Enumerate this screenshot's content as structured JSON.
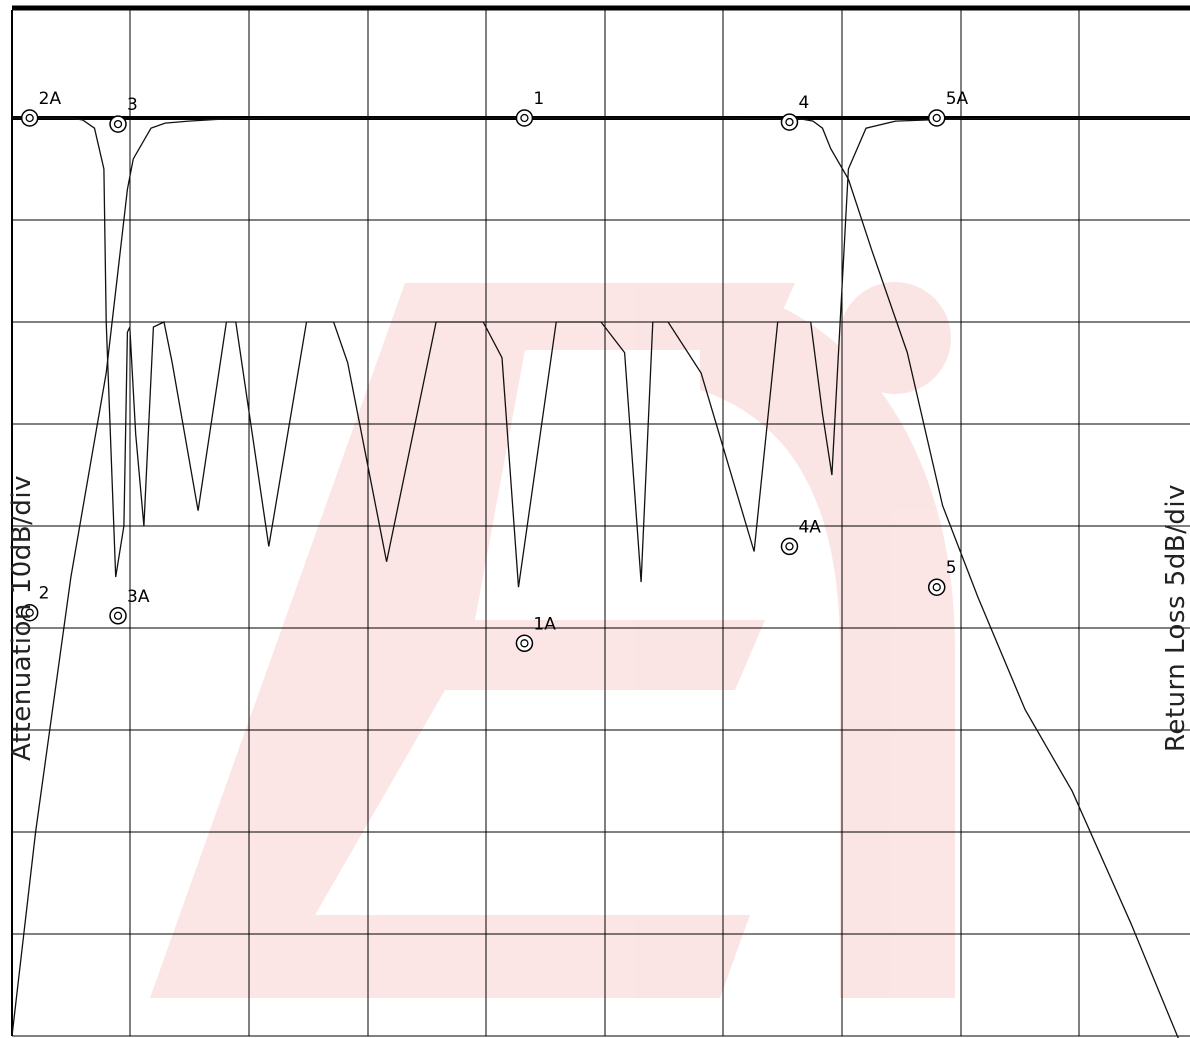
{
  "chart_data": {
    "type": "line",
    "xlabel": "",
    "ylabel": "Attenuation 10dB/div",
    "ylabel_right": "Return Loss 5dB/div",
    "grid": true,
    "watermark": "red logo",
    "grid_divisions": {
      "x": 10,
      "y": 9
    },
    "x": [
      0.0,
      0.2,
      0.5,
      0.8,
      0.9,
      0.98,
      1.03,
      1.18,
      1.3,
      1.5,
      1.8,
      2.2,
      3.0,
      4.0,
      5.0,
      6.0,
      6.7,
      6.8,
      6.88,
      6.95,
      7.1,
      7.3,
      7.6,
      7.9,
      8.2,
      8.6,
      9.0,
      9.5,
      10.0
    ],
    "series": [
      {
        "name": "Attenuation",
        "values": [
          -90.0,
          -70.0,
          -45.0,
          -25.0,
          -15.0,
          -7.0,
          -4.0,
          -1.0,
          -0.5,
          -0.3,
          -0.1,
          0.0,
          0.0,
          0.0,
          0.0,
          0.0,
          -0.1,
          -0.3,
          -1.0,
          -3.0,
          -6.0,
          -13.0,
          -23.0,
          -38.0,
          -47.0,
          -58.0,
          -66.0,
          -79.0,
          -93.0
        ]
      },
      {
        "name": "Return Loss",
        "x": [
          0.0,
          0.5,
          0.6,
          0.7,
          0.78,
          0.8,
          0.88,
          0.95,
          0.98,
          1.0,
          1.05,
          1.12,
          1.2,
          1.29,
          1.36,
          1.58,
          1.82,
          1.9,
          2.18,
          2.5,
          2.73,
          2.85,
          3.18,
          3.6,
          4.0,
          4.16,
          4.3,
          4.62,
          5.0,
          5.2,
          5.34,
          5.44,
          5.57,
          5.85,
          6.3,
          6.5,
          6.78,
          6.88,
          6.96,
          7.1,
          7.25,
          7.5,
          8.0,
          8.5,
          9.0,
          9.5,
          10.0
        ],
        "values": [
          0.0,
          0.0,
          -0.2,
          -1.0,
          -5.0,
          -20.0,
          -45.0,
          -40.0,
          -21.0,
          -20.5,
          -31.0,
          -40.0,
          -20.5,
          -20.0,
          -24.0,
          -38.5,
          -20.0,
          -20.0,
          -42.0,
          -20.0,
          -20.0,
          -24.0,
          -43.5,
          -20.0,
          -20.0,
          -23.5,
          -46.0,
          -20.0,
          -20.0,
          -23.0,
          -45.5,
          -20.0,
          -20.0,
          -25.0,
          -42.5,
          -20.0,
          -20.0,
          -29.0,
          -35.0,
          -5.0,
          -1.0,
          -0.3,
          -0.1,
          0.0,
          0.0,
          0.0,
          0.0
        ]
      }
    ],
    "markers": [
      {
        "label": "1",
        "x": 4.35,
        "y": 0.0
      },
      {
        "label": "2",
        "x": 0.15,
        "y": -48.5
      },
      {
        "label": "2A",
        "x": 0.15,
        "y": 0.0
      },
      {
        "label": "3",
        "x": 0.9,
        "y": -0.6
      },
      {
        "label": "3A",
        "x": 0.9,
        "y": -48.8
      },
      {
        "label": "1A",
        "x": 4.35,
        "y": -51.5
      },
      {
        "label": "4",
        "x": 6.6,
        "y": -0.4
      },
      {
        "label": "4A",
        "x": 6.6,
        "y": -42.0
      },
      {
        "label": "5",
        "x": 7.85,
        "y": -46.0
      },
      {
        "label": "5A",
        "x": 7.85,
        "y": 0.0
      }
    ]
  }
}
